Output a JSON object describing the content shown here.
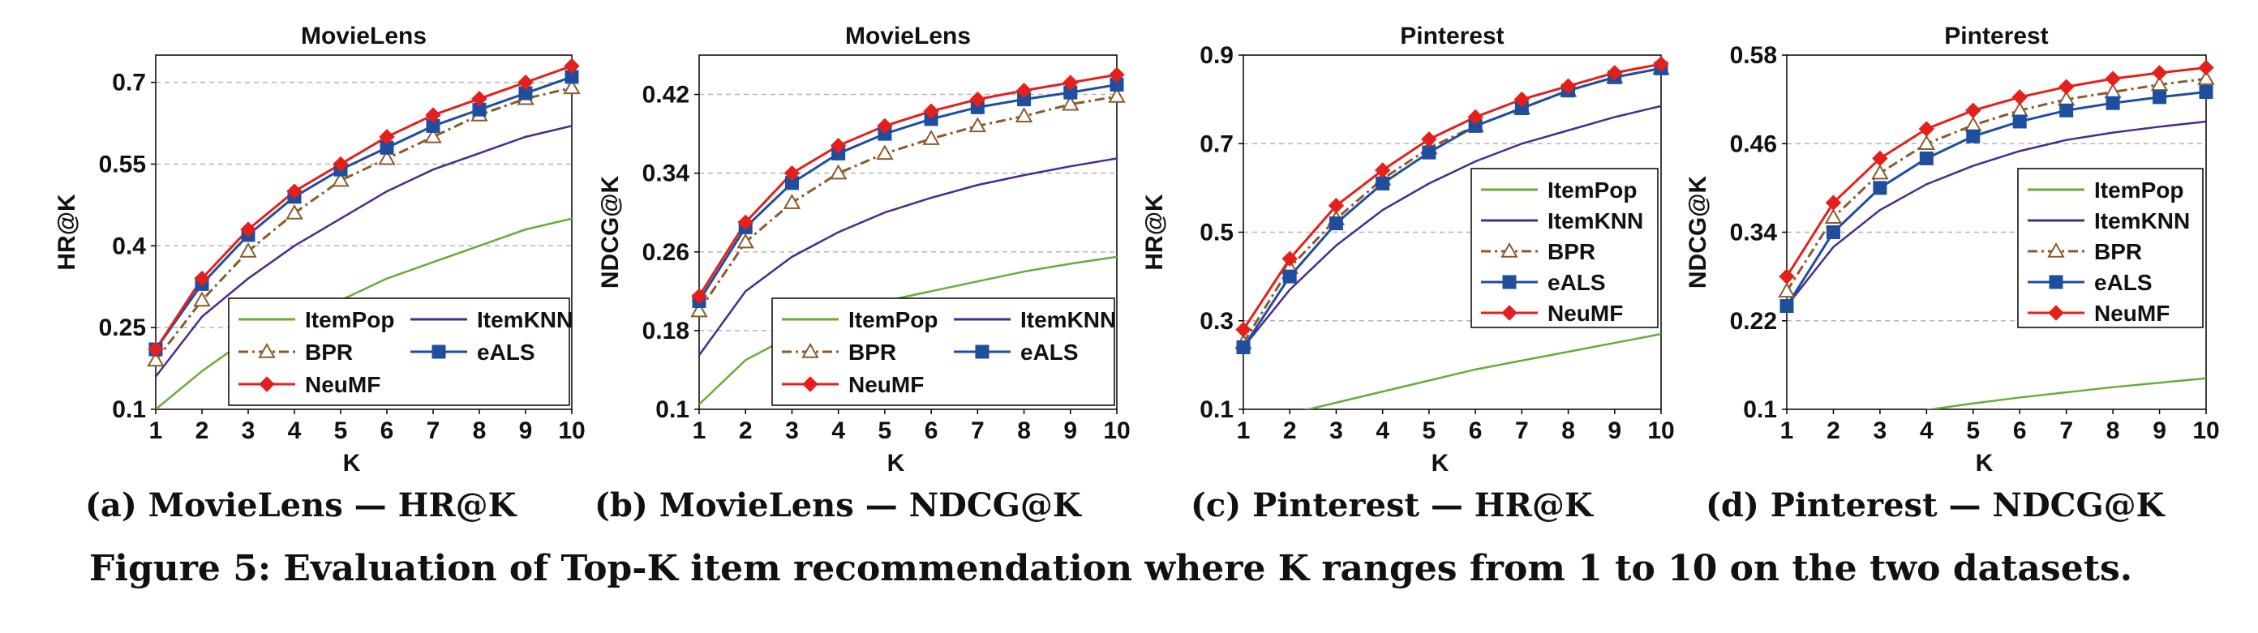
{
  "figure_caption": "Figure 5: Evaluation of Top-K item recommendation where K ranges from 1 to 10 on the two datasets.",
  "colors": {
    "ItemPop": "#6aaa3a",
    "ItemKNN": "#4b2a8c",
    "BPR": "#8b5a2b",
    "eALS": "#1f4e9e",
    "NeuMF": "#e3201b"
  },
  "chart_data": [
    {
      "type": "line",
      "subcaption": "(a) MovieLens — HR@K",
      "title": "MovieLens",
      "xlabel": "K",
      "ylabel": "HR@K",
      "x": [
        1,
        2,
        3,
        4,
        5,
        6,
        7,
        8,
        9,
        10
      ],
      "xlim": [
        1,
        10
      ],
      "ylim": [
        0.1,
        0.75
      ],
      "yticks": [
        "0.1",
        "0.25",
        "0.4",
        "0.55",
        "0.7"
      ],
      "legend": "bottom-right",
      "legend_columns": 2,
      "grid": "horizontal-dashed",
      "series": [
        {
          "name": "ItemPop",
          "marker": "none",
          "values": [
            0.1,
            0.17,
            0.23,
            0.26,
            0.3,
            0.34,
            0.37,
            0.4,
            0.43,
            0.45
          ]
        },
        {
          "name": "ItemKNN",
          "marker": "none",
          "values": [
            0.16,
            0.27,
            0.34,
            0.4,
            0.45,
            0.5,
            0.54,
            0.57,
            0.6,
            0.62
          ]
        },
        {
          "name": "BPR",
          "marker": "triangle",
          "values": [
            0.19,
            0.3,
            0.39,
            0.46,
            0.52,
            0.56,
            0.6,
            0.64,
            0.67,
            0.69
          ]
        },
        {
          "name": "eALS",
          "marker": "square",
          "values": [
            0.21,
            0.33,
            0.42,
            0.49,
            0.54,
            0.58,
            0.62,
            0.65,
            0.68,
            0.71
          ]
        },
        {
          "name": "NeuMF",
          "marker": "diamond",
          "values": [
            0.21,
            0.34,
            0.43,
            0.5,
            0.55,
            0.6,
            0.64,
            0.67,
            0.7,
            0.73
          ]
        }
      ]
    },
    {
      "type": "line",
      "subcaption": "(b) MovieLens — NDCG@K",
      "title": "MovieLens",
      "xlabel": "K",
      "ylabel": "NDCG@K",
      "x": [
        1,
        2,
        3,
        4,
        5,
        6,
        7,
        8,
        9,
        10
      ],
      "xlim": [
        1,
        10
      ],
      "ylim": [
        0.1,
        0.46
      ],
      "yticks": [
        "0.1",
        "0.18",
        "0.26",
        "0.34",
        "0.42"
      ],
      "legend": "bottom-right",
      "legend_columns": 2,
      "grid": "horizontal-dashed",
      "series": [
        {
          "name": "ItemPop",
          "marker": "none",
          "values": [
            0.105,
            0.15,
            0.175,
            0.195,
            0.21,
            0.22,
            0.23,
            0.24,
            0.248,
            0.255
          ]
        },
        {
          "name": "ItemKNN",
          "marker": "none",
          "values": [
            0.155,
            0.22,
            0.255,
            0.28,
            0.3,
            0.315,
            0.328,
            0.338,
            0.347,
            0.355
          ]
        },
        {
          "name": "BPR",
          "marker": "triangle",
          "values": [
            0.2,
            0.27,
            0.31,
            0.34,
            0.36,
            0.375,
            0.388,
            0.398,
            0.41,
            0.418
          ]
        },
        {
          "name": "eALS",
          "marker": "square",
          "values": [
            0.21,
            0.285,
            0.33,
            0.36,
            0.38,
            0.395,
            0.407,
            0.415,
            0.422,
            0.43
          ]
        },
        {
          "name": "NeuMF",
          "marker": "diamond",
          "values": [
            0.215,
            0.29,
            0.34,
            0.368,
            0.388,
            0.403,
            0.415,
            0.424,
            0.432,
            0.44
          ]
        }
      ]
    },
    {
      "type": "line",
      "subcaption": "(c) Pinterest — HR@K",
      "title": "Pinterest",
      "xlabel": "K",
      "ylabel": "HR@K",
      "x": [
        1,
        2,
        3,
        4,
        5,
        6,
        7,
        8,
        9,
        10
      ],
      "xlim": [
        1,
        10
      ],
      "ylim": [
        0.1,
        0.9
      ],
      "yticks": [
        "0.1",
        "0.3",
        "0.5",
        "0.7",
        "0.9"
      ],
      "legend": "right",
      "legend_columns": 1,
      "grid": "horizontal-dashed",
      "series": [
        {
          "name": "ItemPop",
          "marker": "none",
          "values": [
            0.06,
            0.09,
            0.115,
            0.14,
            0.165,
            0.19,
            0.21,
            0.23,
            0.25,
            0.27
          ]
        },
        {
          "name": "ItemKNN",
          "marker": "none",
          "values": [
            0.24,
            0.37,
            0.47,
            0.55,
            0.61,
            0.66,
            0.7,
            0.73,
            0.76,
            0.785
          ]
        },
        {
          "name": "BPR",
          "marker": "triangle",
          "values": [
            0.25,
            0.42,
            0.53,
            0.62,
            0.69,
            0.74,
            0.78,
            0.82,
            0.85,
            0.87
          ]
        },
        {
          "name": "eALS",
          "marker": "square",
          "values": [
            0.24,
            0.4,
            0.52,
            0.61,
            0.68,
            0.74,
            0.78,
            0.82,
            0.85,
            0.87
          ]
        },
        {
          "name": "NeuMF",
          "marker": "diamond",
          "values": [
            0.28,
            0.44,
            0.56,
            0.64,
            0.71,
            0.76,
            0.8,
            0.83,
            0.86,
            0.88
          ]
        }
      ]
    },
    {
      "type": "line",
      "subcaption": "(d) Pinterest — NDCG@K",
      "title": "Pinterest",
      "xlabel": "K",
      "ylabel": "NDCG@K",
      "x": [
        1,
        2,
        3,
        4,
        5,
        6,
        7,
        8,
        9,
        10
      ],
      "xlim": [
        1,
        10
      ],
      "ylim": [
        0.1,
        0.58
      ],
      "yticks": [
        "0.1",
        "0.22",
        "0.34",
        "0.46",
        "0.58"
      ],
      "legend": "right",
      "legend_columns": 1,
      "grid": "horizontal-dashed",
      "series": [
        {
          "name": "ItemPop",
          "marker": "none",
          "values": [
            0.06,
            0.075,
            0.088,
            0.099,
            0.108,
            0.116,
            0.123,
            0.13,
            0.136,
            0.142
          ]
        },
        {
          "name": "ItemKNN",
          "marker": "none",
          "values": [
            0.24,
            0.32,
            0.37,
            0.405,
            0.43,
            0.45,
            0.465,
            0.475,
            0.483,
            0.49
          ]
        },
        {
          "name": "BPR",
          "marker": "triangle",
          "values": [
            0.26,
            0.36,
            0.42,
            0.46,
            0.485,
            0.505,
            0.52,
            0.53,
            0.54,
            0.548
          ]
        },
        {
          "name": "eALS",
          "marker": "square",
          "values": [
            0.24,
            0.34,
            0.4,
            0.44,
            0.47,
            0.49,
            0.505,
            0.515,
            0.523,
            0.53
          ]
        },
        {
          "name": "NeuMF",
          "marker": "diamond",
          "values": [
            0.28,
            0.38,
            0.44,
            0.48,
            0.505,
            0.523,
            0.537,
            0.548,
            0.556,
            0.563
          ]
        }
      ]
    }
  ]
}
